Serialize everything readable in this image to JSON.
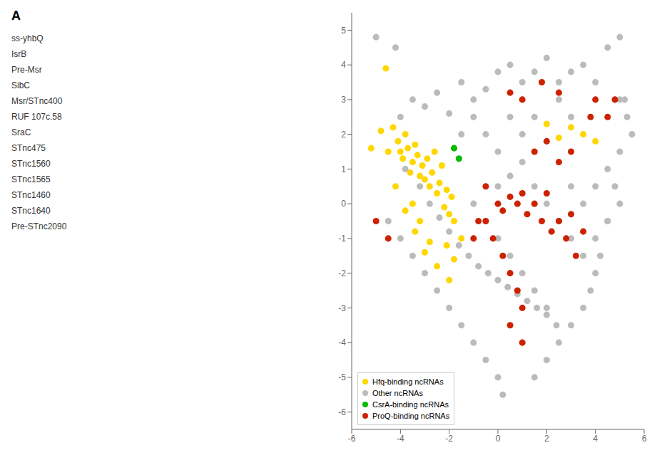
{
  "chart_data": {
    "type": "scatter",
    "annotations": [
      "A",
      "ss-yhbQ",
      "IsrB",
      "Pre-Msr",
      "SibC",
      "Msr/STnc400",
      "RUF 107c.58",
      "SraC",
      "STnc475",
      "STnc1560",
      "STnc1565",
      "STnc1460",
      "STnc1640",
      "Pre-STnc2090"
    ],
    "xlim": [
      -6,
      6
    ],
    "ylim": [
      -6.5,
      5.5
    ],
    "xticks": [
      -6,
      -4,
      -2,
      0,
      2,
      4,
      6
    ],
    "yticks": [
      -6,
      -5,
      -4,
      -3,
      -2,
      -1,
      0,
      1,
      2,
      3,
      4,
      5
    ],
    "grid": false,
    "legend": "lower left",
    "series": [
      {
        "name": "Hfq-binding ncRNAs",
        "color": "#FFD700",
        "values": [
          [
            -5.2,
            1.6
          ],
          [
            -4.8,
            2.1
          ],
          [
            -4.5,
            1.5
          ],
          [
            -4.3,
            2.2
          ],
          [
            -4.1,
            1.8
          ],
          [
            -4.0,
            1.5
          ],
          [
            -3.9,
            1.3
          ],
          [
            -3.8,
            2.0
          ],
          [
            -3.7,
            1.6
          ],
          [
            -3.6,
            0.9
          ],
          [
            -3.5,
            1.2
          ],
          [
            -3.4,
            1.7
          ],
          [
            -3.3,
            1.4
          ],
          [
            -3.2,
            0.8
          ],
          [
            -3.1,
            1.1
          ],
          [
            -3.0,
            0.7
          ],
          [
            -2.9,
            1.3
          ],
          [
            -2.8,
            0.5
          ],
          [
            -2.7,
            0.9
          ],
          [
            -2.6,
            1.5
          ],
          [
            -2.5,
            0.3
          ],
          [
            -2.4,
            0.6
          ],
          [
            -2.3,
            1.1
          ],
          [
            -2.2,
            -0.1
          ],
          [
            -2.1,
            0.4
          ],
          [
            -2.0,
            -0.3
          ],
          [
            -1.9,
            0.2
          ],
          [
            -1.8,
            -0.5
          ],
          [
            -1.5,
            -1.0
          ],
          [
            -4.6,
            3.9
          ],
          [
            -3.0,
            -1.4
          ],
          [
            -2.5,
            -1.8
          ],
          [
            -2.1,
            -1.2
          ],
          [
            -1.8,
            -1.6
          ],
          [
            -3.5,
            0.0
          ],
          [
            -3.2,
            -0.5
          ],
          [
            -2.8,
            -1.1
          ],
          [
            -2.0,
            -2.2
          ],
          [
            -4.2,
            0.5
          ],
          [
            -3.8,
            -0.2
          ],
          [
            -3.4,
            -0.8
          ],
          [
            2.0,
            2.3
          ],
          [
            2.5,
            1.9
          ],
          [
            3.0,
            2.2
          ],
          [
            3.5,
            2.0
          ],
          [
            4.0,
            1.8
          ]
        ]
      },
      {
        "name": "Other ncRNAs",
        "color": "#BBBBBB",
        "values": [
          [
            -5.0,
            4.8
          ],
          [
            -4.2,
            4.5
          ],
          [
            -4.0,
            2.5
          ],
          [
            -3.5,
            3.0
          ],
          [
            -3.0,
            2.8
          ],
          [
            -2.5,
            3.2
          ],
          [
            -2.0,
            2.6
          ],
          [
            -1.5,
            3.5
          ],
          [
            -1.0,
            3.0
          ],
          [
            -0.5,
            3.3
          ],
          [
            0.0,
            3.8
          ],
          [
            0.5,
            4.0
          ],
          [
            1.0,
            3.5
          ],
          [
            1.5,
            3.8
          ],
          [
            2.0,
            4.2
          ],
          [
            2.5,
            3.5
          ],
          [
            3.0,
            3.8
          ],
          [
            3.5,
            4.0
          ],
          [
            4.0,
            3.5
          ],
          [
            4.5,
            4.5
          ],
          [
            5.0,
            4.8
          ],
          [
            5.2,
            3.0
          ],
          [
            5.3,
            2.5
          ],
          [
            5.0,
            1.5
          ],
          [
            4.8,
            0.5
          ],
          [
            4.5,
            -0.5
          ],
          [
            4.2,
            -1.5
          ],
          [
            4.0,
            -2.0
          ],
          [
            3.8,
            -2.5
          ],
          [
            3.5,
            -3.0
          ],
          [
            3.0,
            -3.5
          ],
          [
            2.5,
            -4.0
          ],
          [
            2.0,
            -4.5
          ],
          [
            1.5,
            -5.0
          ],
          [
            -3.8,
            1.0
          ],
          [
            -3.2,
            0.5
          ],
          [
            -2.8,
            0.0
          ],
          [
            -2.4,
            -0.4
          ],
          [
            -2.0,
            -0.8
          ],
          [
            -1.6,
            -1.2
          ],
          [
            -1.2,
            -1.5
          ],
          [
            -0.8,
            -1.8
          ],
          [
            -0.4,
            -2.0
          ],
          [
            0.0,
            -2.2
          ],
          [
            0.4,
            -2.4
          ],
          [
            0.8,
            -2.6
          ],
          [
            1.2,
            -2.8
          ],
          [
            1.6,
            -3.0
          ],
          [
            2.0,
            -3.2
          ],
          [
            2.4,
            -3.5
          ],
          [
            0.0,
            0.5
          ],
          [
            0.5,
            0.8
          ],
          [
            1.0,
            1.2
          ],
          [
            1.5,
            0.5
          ],
          [
            2.0,
            0.0
          ],
          [
            2.5,
            -0.5
          ],
          [
            3.0,
            -1.0
          ],
          [
            3.5,
            -1.5
          ],
          [
            4.0,
            -1.0
          ],
          [
            4.5,
            -0.5
          ],
          [
            -1.0,
            0.0
          ],
          [
            -0.5,
            -0.5
          ],
          [
            0.0,
            -1.0
          ],
          [
            0.5,
            -1.5
          ],
          [
            1.0,
            -2.0
          ],
          [
            1.5,
            -2.5
          ],
          [
            2.0,
            -3.0
          ],
          [
            -4.5,
            -0.5
          ],
          [
            -4.0,
            -1.0
          ],
          [
            -3.5,
            -1.5
          ],
          [
            -3.0,
            -2.0
          ],
          [
            -2.5,
            -2.5
          ],
          [
            -2.0,
            -3.0
          ],
          [
            -1.5,
            -3.5
          ],
          [
            -1.0,
            -4.0
          ],
          [
            -0.5,
            -4.5
          ],
          [
            0.0,
            -5.0
          ],
          [
            3.0,
            0.5
          ],
          [
            3.5,
            0.0
          ],
          [
            4.0,
            0.5
          ],
          [
            4.5,
            1.0
          ],
          [
            5.0,
            0.0
          ],
          [
            -1.5,
            2.0
          ],
          [
            -1.0,
            2.5
          ],
          [
            -0.5,
            2.0
          ],
          [
            0.0,
            1.5
          ],
          [
            0.5,
            2.5
          ],
          [
            1.0,
            2.0
          ],
          [
            1.5,
            2.5
          ],
          [
            2.5,
            3.0
          ],
          [
            3.0,
            2.5
          ],
          [
            5.5,
            2.0
          ],
          [
            5.0,
            3.0
          ],
          [
            0.2,
            -5.5
          ]
        ]
      },
      {
        "name": "CsrA-binding ncRNAs",
        "color": "#00BB00",
        "values": [
          [
            -1.8,
            1.6
          ],
          [
            -1.6,
            1.3
          ]
        ]
      },
      {
        "name": "ProQ-binding ncRNAs",
        "color": "#CC2200",
        "values": [
          [
            0.5,
            3.2
          ],
          [
            1.0,
            3.0
          ],
          [
            1.8,
            3.5
          ],
          [
            2.5,
            3.2
          ],
          [
            0.0,
            0.0
          ],
          [
            0.2,
            -0.2
          ],
          [
            0.5,
            0.2
          ],
          [
            0.8,
            0.0
          ],
          [
            1.0,
            0.3
          ],
          [
            1.2,
            -0.3
          ],
          [
            1.5,
            0.0
          ],
          [
            1.8,
            -0.5
          ],
          [
            2.0,
            0.3
          ],
          [
            2.2,
            -0.8
          ],
          [
            2.5,
            -0.5
          ],
          [
            2.8,
            -1.0
          ],
          [
            3.0,
            -0.3
          ],
          [
            3.2,
            -1.5
          ],
          [
            3.5,
            -0.8
          ],
          [
            -0.5,
            -0.5
          ],
          [
            -0.2,
            -1.0
          ],
          [
            0.2,
            -1.5
          ],
          [
            0.5,
            -2.0
          ],
          [
            0.8,
            -2.5
          ],
          [
            1.0,
            -3.0
          ],
          [
            -0.5,
            0.5
          ],
          [
            -0.8,
            -0.5
          ],
          [
            -1.0,
            -1.0
          ],
          [
            1.5,
            1.5
          ],
          [
            2.0,
            1.8
          ],
          [
            2.5,
            1.2
          ],
          [
            3.0,
            1.5
          ],
          [
            4.0,
            3.0
          ],
          [
            3.8,
            2.5
          ],
          [
            4.5,
            2.5
          ],
          [
            4.8,
            3.0
          ],
          [
            -5.0,
            -0.5
          ],
          [
            -4.5,
            -1.0
          ],
          [
            0.5,
            -3.5
          ],
          [
            1.0,
            -4.0
          ]
        ]
      }
    ]
  }
}
